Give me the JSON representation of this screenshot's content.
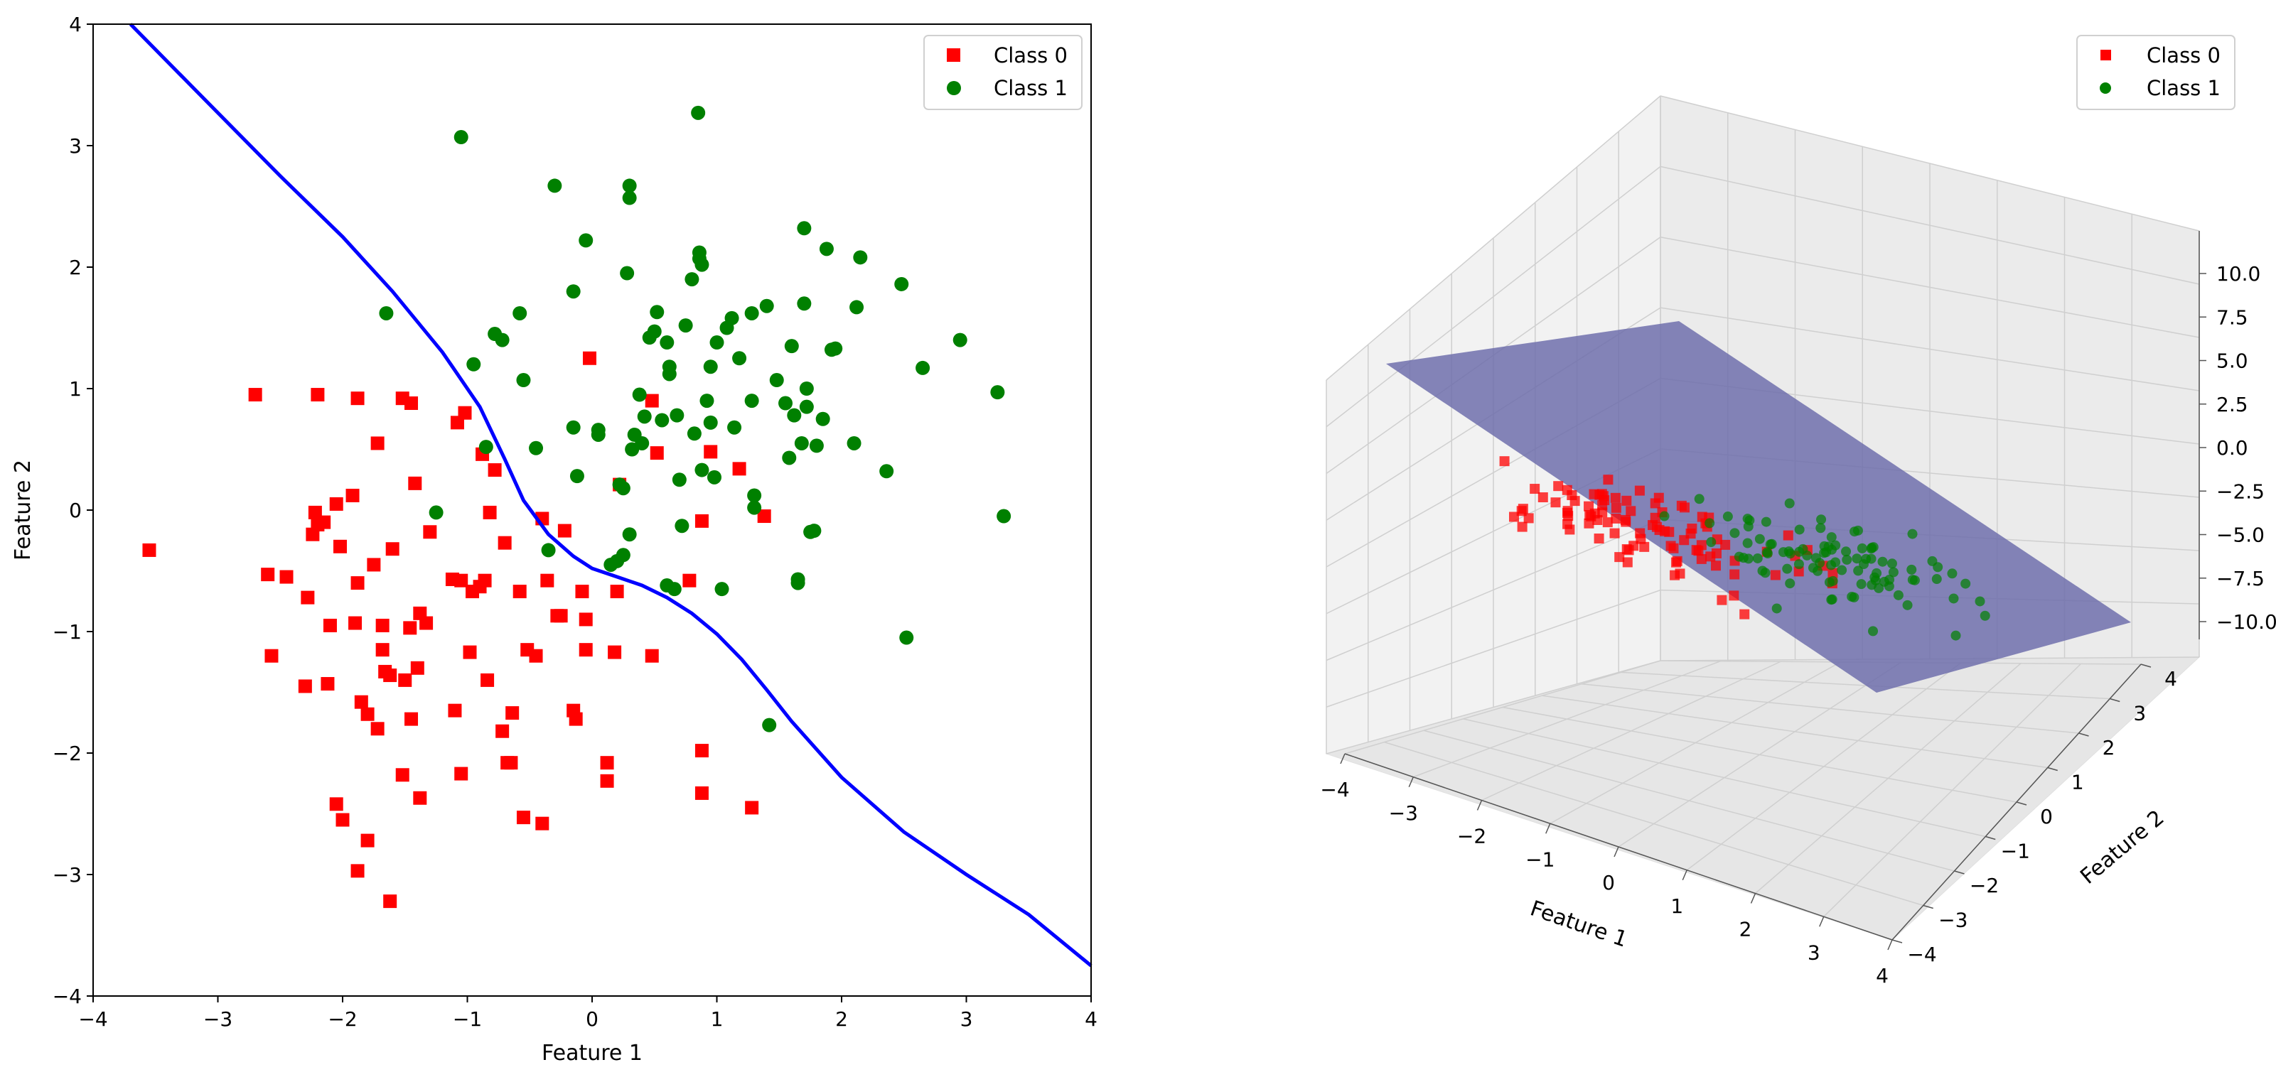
{
  "chart_data": [
    {
      "type": "scatter",
      "xlabel": "Feature 1",
      "ylabel": "Feature 2",
      "xlim": [
        -4,
        4
      ],
      "ylim": [
        -4,
        4
      ],
      "xticks": [
        -4,
        -3,
        -2,
        -1,
        0,
        1,
        2,
        3,
        4
      ],
      "yticks": [
        -4,
        -3,
        -2,
        -1,
        0,
        1,
        2,
        3,
        4
      ],
      "grid": false,
      "legend_position": "top-right",
      "legend": [
        "Class 0",
        "Class 1"
      ],
      "series": [
        {
          "name": "Class 0",
          "marker": "square",
          "color": "#ff0000",
          "points": [
            [
              -3.55,
              -0.33
            ],
            [
              -2.7,
              0.95
            ],
            [
              -2.6,
              -0.53
            ],
            [
              -2.57,
              -1.2
            ],
            [
              -2.45,
              -0.55
            ],
            [
              -2.2,
              0.95
            ],
            [
              -2.3,
              -1.45
            ],
            [
              -2.28,
              -0.72
            ],
            [
              -2.22,
              -0.02
            ],
            [
              -2.24,
              -0.2
            ],
            [
              -2.2,
              -0.12
            ],
            [
              -2.15,
              -0.1
            ],
            [
              -2.12,
              -1.43
            ],
            [
              -2.1,
              -0.95
            ],
            [
              -2.05,
              0.05
            ],
            [
              -2.05,
              -2.42
            ],
            [
              -2.02,
              -0.3
            ],
            [
              -2.0,
              -2.55
            ],
            [
              -1.92,
              0.12
            ],
            [
              -1.9,
              -0.93
            ],
            [
              -1.88,
              -2.97
            ],
            [
              -1.88,
              -0.6
            ],
            [
              -1.88,
              0.92
            ],
            [
              -1.85,
              -1.58
            ],
            [
              -1.8,
              -1.68
            ],
            [
              -1.8,
              -2.72
            ],
            [
              -1.75,
              -0.45
            ],
            [
              -1.72,
              -1.8
            ],
            [
              -1.72,
              0.55
            ],
            [
              -1.68,
              -0.95
            ],
            [
              -1.68,
              -1.15
            ],
            [
              -1.66,
              -1.33
            ],
            [
              -1.62,
              -1.36
            ],
            [
              -1.62,
              -3.22
            ],
            [
              -1.6,
              -0.32
            ],
            [
              -1.52,
              0.92
            ],
            [
              -1.52,
              -2.18
            ],
            [
              -1.5,
              -1.4
            ],
            [
              -1.46,
              -0.97
            ],
            [
              -1.45,
              0.88
            ],
            [
              -1.45,
              -1.72
            ],
            [
              -1.42,
              0.22
            ],
            [
              -1.4,
              -1.3
            ],
            [
              -1.38,
              -0.85
            ],
            [
              -1.38,
              -2.37
            ],
            [
              -1.33,
              -0.93
            ],
            [
              -1.3,
              -0.18
            ],
            [
              -1.12,
              -0.57
            ],
            [
              -1.1,
              -1.65
            ],
            [
              -1.08,
              0.72
            ],
            [
              -1.05,
              -0.58
            ],
            [
              -1.05,
              -2.17
            ],
            [
              -1.02,
              0.8
            ],
            [
              -0.98,
              -1.17
            ],
            [
              -0.96,
              -0.67
            ],
            [
              -0.9,
              -0.63
            ],
            [
              -0.88,
              0.46
            ],
            [
              -0.86,
              -0.58
            ],
            [
              -0.84,
              -1.4
            ],
            [
              -0.82,
              -0.02
            ],
            [
              -0.78,
              0.33
            ],
            [
              -0.72,
              -1.82
            ],
            [
              -0.7,
              -0.27
            ],
            [
              -0.68,
              -2.08
            ],
            [
              -0.65,
              -2.08
            ],
            [
              -0.64,
              -1.67
            ],
            [
              -0.58,
              -0.67
            ],
            [
              -0.55,
              -2.53
            ],
            [
              -0.52,
              -1.15
            ],
            [
              -0.45,
              -1.2
            ],
            [
              -0.4,
              -0.07
            ],
            [
              -0.4,
              -2.58
            ],
            [
              -0.36,
              -0.58
            ],
            [
              -0.28,
              -0.87
            ],
            [
              -0.25,
              -0.87
            ],
            [
              -0.22,
              -0.17
            ],
            [
              -0.15,
              -1.65
            ],
            [
              -0.13,
              -1.72
            ],
            [
              -0.08,
              -0.67
            ],
            [
              -0.05,
              -1.15
            ],
            [
              -0.05,
              -0.9
            ],
            [
              -0.02,
              1.25
            ],
            [
              0.12,
              -2.08
            ],
            [
              0.12,
              -2.23
            ],
            [
              0.18,
              -1.17
            ],
            [
              0.2,
              -0.67
            ],
            [
              0.22,
              0.21
            ],
            [
              0.48,
              0.9
            ],
            [
              0.48,
              -1.2
            ],
            [
              0.52,
              0.47
            ],
            [
              0.78,
              -0.58
            ],
            [
              0.88,
              -1.98
            ],
            [
              0.88,
              -0.09
            ],
            [
              0.88,
              -2.33
            ],
            [
              0.95,
              0.48
            ],
            [
              1.18,
              0.34
            ],
            [
              1.28,
              -2.45
            ],
            [
              1.38,
              -0.05
            ]
          ]
        },
        {
          "name": "Class 1",
          "marker": "circle",
          "color": "#008000",
          "points": [
            [
              -1.65,
              1.62
            ],
            [
              -1.25,
              -0.02
            ],
            [
              -1.05,
              3.07
            ],
            [
              -0.95,
              1.2
            ],
            [
              -0.85,
              0.52
            ],
            [
              -0.78,
              1.45
            ],
            [
              -0.72,
              1.4
            ],
            [
              -0.58,
              1.62
            ],
            [
              -0.55,
              1.07
            ],
            [
              -0.45,
              0.51
            ],
            [
              -0.35,
              -0.33
            ],
            [
              -0.3,
              2.67
            ],
            [
              -0.15,
              1.8
            ],
            [
              -0.15,
              0.68
            ],
            [
              -0.12,
              0.28
            ],
            [
              -0.05,
              2.22
            ],
            [
              0.05,
              0.66
            ],
            [
              0.05,
              0.62
            ],
            [
              0.15,
              -0.45
            ],
            [
              0.2,
              -0.42
            ],
            [
              0.22,
              0.21
            ],
            [
              0.25,
              0.18
            ],
            [
              0.25,
              -0.37
            ],
            [
              0.28,
              1.95
            ],
            [
              0.3,
              2.57
            ],
            [
              0.3,
              2.67
            ],
            [
              0.3,
              -0.2
            ],
            [
              0.32,
              0.5
            ],
            [
              0.34,
              0.62
            ],
            [
              0.38,
              0.95
            ],
            [
              0.4,
              0.55
            ],
            [
              0.42,
              0.77
            ],
            [
              0.46,
              1.42
            ],
            [
              0.5,
              1.47
            ],
            [
              0.52,
              1.63
            ],
            [
              0.56,
              0.74
            ],
            [
              0.6,
              1.38
            ],
            [
              0.6,
              -0.62
            ],
            [
              0.62,
              1.12
            ],
            [
              0.62,
              1.18
            ],
            [
              0.66,
              -0.65
            ],
            [
              0.68,
              0.78
            ],
            [
              0.7,
              0.25
            ],
            [
              0.72,
              -0.13
            ],
            [
              0.75,
              1.52
            ],
            [
              0.8,
              1.9
            ],
            [
              0.82,
              0.63
            ],
            [
              0.85,
              3.27
            ],
            [
              0.86,
              2.07
            ],
            [
              0.86,
              2.12
            ],
            [
              0.88,
              2.02
            ],
            [
              0.88,
              0.33
            ],
            [
              0.92,
              0.9
            ],
            [
              0.95,
              1.18
            ],
            [
              0.95,
              0.72
            ],
            [
              0.98,
              0.27
            ],
            [
              1.0,
              1.38
            ],
            [
              1.04,
              -0.65
            ],
            [
              1.08,
              1.5
            ],
            [
              1.12,
              1.58
            ],
            [
              1.14,
              0.68
            ],
            [
              1.18,
              1.25
            ],
            [
              1.28,
              0.9
            ],
            [
              1.28,
              1.62
            ],
            [
              1.3,
              0.12
            ],
            [
              1.3,
              0.02
            ],
            [
              1.4,
              1.68
            ],
            [
              1.42,
              -1.77
            ],
            [
              1.48,
              1.07
            ],
            [
              1.55,
              0.88
            ],
            [
              1.58,
              0.43
            ],
            [
              1.6,
              1.35
            ],
            [
              1.62,
              0.78
            ],
            [
              1.65,
              -0.57
            ],
            [
              1.65,
              -0.6
            ],
            [
              1.68,
              0.55
            ],
            [
              1.7,
              2.32
            ],
            [
              1.7,
              1.7
            ],
            [
              1.72,
              1.0
            ],
            [
              1.72,
              0.85
            ],
            [
              1.75,
              -0.18
            ],
            [
              1.78,
              -0.17
            ],
            [
              1.8,
              0.53
            ],
            [
              1.85,
              0.75
            ],
            [
              1.88,
              2.15
            ],
            [
              1.92,
              1.32
            ],
            [
              1.95,
              1.33
            ],
            [
              2.1,
              0.55
            ],
            [
              2.12,
              1.67
            ],
            [
              2.15,
              2.08
            ],
            [
              2.36,
              0.32
            ],
            [
              2.48,
              1.86
            ],
            [
              2.52,
              -1.05
            ],
            [
              2.65,
              1.17
            ],
            [
              2.95,
              1.4
            ],
            [
              3.25,
              0.97
            ],
            [
              3.3,
              -0.05
            ]
          ]
        }
      ],
      "decision_boundary": {
        "color": "#0000ff",
        "points": [
          [
            -3.7,
            4.0
          ],
          [
            -3.0,
            3.27
          ],
          [
            -2.5,
            2.75
          ],
          [
            -2.0,
            2.25
          ],
          [
            -1.6,
            1.8
          ],
          [
            -1.2,
            1.3
          ],
          [
            -0.9,
            0.85
          ],
          [
            -0.7,
            0.42
          ],
          [
            -0.55,
            0.08
          ],
          [
            -0.35,
            -0.2
          ],
          [
            -0.15,
            -0.38
          ],
          [
            0.0,
            -0.48
          ],
          [
            0.2,
            -0.55
          ],
          [
            0.4,
            -0.62
          ],
          [
            0.6,
            -0.72
          ],
          [
            0.8,
            -0.85
          ],
          [
            1.0,
            -1.02
          ],
          [
            1.2,
            -1.23
          ],
          [
            1.4,
            -1.48
          ],
          [
            1.6,
            -1.74
          ],
          [
            2.0,
            -2.2
          ],
          [
            2.5,
            -2.65
          ],
          [
            3.0,
            -3.0
          ],
          [
            3.5,
            -3.33
          ],
          [
            4.0,
            -3.75
          ]
        ]
      }
    },
    {
      "type": "scatter3d",
      "xlabel": "Feature 1",
      "ylabel": "Feature 2",
      "zlabel": "",
      "xlim": [
        -4,
        4
      ],
      "ylim": [
        -4,
        4
      ],
      "zlim": [
        -10,
        10
      ],
      "xticks": [
        -4,
        -3,
        -2,
        -1,
        0,
        1,
        2,
        3,
        4
      ],
      "yticks": [
        -4,
        -3,
        -2,
        -1,
        0,
        1,
        2,
        3,
        4
      ],
      "zticks": [
        "-10.0",
        "-7.5",
        "-5.0",
        "-2.5",
        "0.0",
        "2.5",
        "5.0",
        "7.5",
        "10.0"
      ],
      "grid": true,
      "legend_position": "top-right",
      "legend": [
        "Class 0",
        "Class 1"
      ],
      "plane_color": "#6a6aaa",
      "class0_color": "#ff0000",
      "class1_color": "#008000"
    }
  ]
}
